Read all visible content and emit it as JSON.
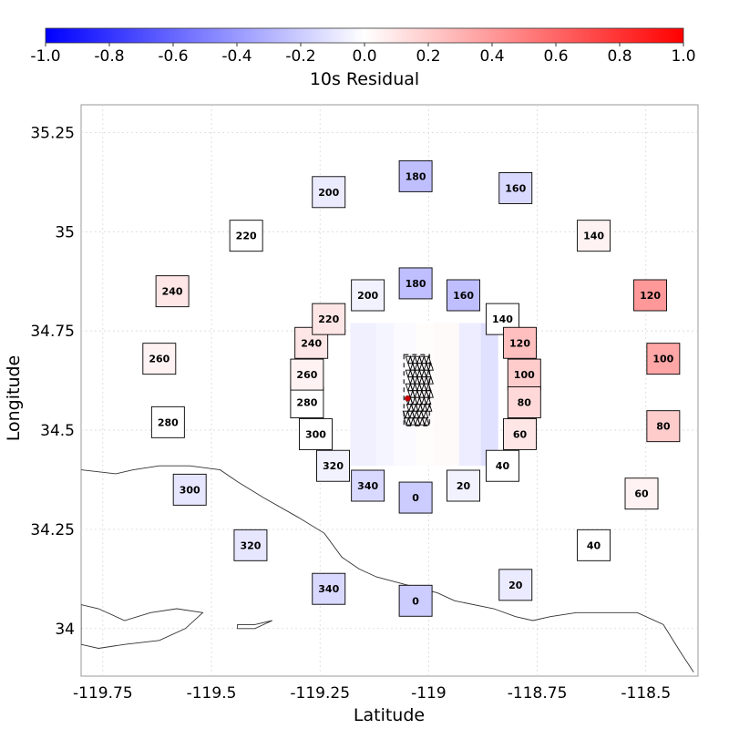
{
  "chart_data": {
    "type": "heatmap",
    "title": "",
    "xlabel": "Latitude",
    "ylabel": "Longitude",
    "xlim": [
      -119.8,
      -118.38
    ],
    "ylim": [
      33.88,
      35.32
    ],
    "xticks": [
      -119.75,
      -119.5,
      -119.25,
      -119,
      -118.75,
      -118.5
    ],
    "xtick_labels": [
      "-119.75",
      "-119.5",
      "-119.25",
      "-119",
      "-118.75",
      "-118.5"
    ],
    "yticks": [
      34,
      34.25,
      34.5,
      34.75,
      35,
      35.25
    ],
    "ytick_labels": [
      "34",
      "34.25",
      "34.5",
      "34.75",
      "35",
      "35.25"
    ],
    "grid": true,
    "colorbar": {
      "label": "10s Residual",
      "placement": "top",
      "min": -1.0,
      "max": 1.0,
      "colors": [
        "#0000ff",
        "#ffffff",
        "#ff0000"
      ],
      "ticks": [
        -1.0,
        -0.8,
        -0.6,
        -0.4,
        -0.2,
        0.0,
        0.2,
        0.4,
        0.6,
        0.8,
        1.0
      ],
      "tick_labels": [
        "-1.0",
        "-0.8",
        "-0.6",
        "-0.4",
        "-0.2",
        "0.0",
        "0.2",
        "0.4",
        "0.6",
        "0.8",
        "1.0"
      ]
    },
    "stations": [
      {
        "label": "180",
        "x": -119.03,
        "y": 35.14,
        "value": -0.25
      },
      {
        "label": "160",
        "x": -118.8,
        "y": 35.11,
        "value": -0.15
      },
      {
        "label": "140",
        "x": -118.62,
        "y": 34.99,
        "value": 0.05
      },
      {
        "label": "120",
        "x": -118.49,
        "y": 34.84,
        "value": 0.4
      },
      {
        "label": "100",
        "x": -118.46,
        "y": 34.68,
        "value": 0.35
      },
      {
        "label": "80",
        "x": -118.46,
        "y": 34.51,
        "value": 0.2
      },
      {
        "label": "60",
        "x": -118.51,
        "y": 34.34,
        "value": 0.05
      },
      {
        "label": "40",
        "x": -118.62,
        "y": 34.21,
        "value": 0.0
      },
      {
        "label": "20",
        "x": -118.8,
        "y": 34.11,
        "value": -0.08
      },
      {
        "label": "0",
        "x": -119.03,
        "y": 34.07,
        "value": -0.2
      },
      {
        "label": "340",
        "x": -119.23,
        "y": 34.1,
        "value": -0.15
      },
      {
        "label": "320",
        "x": -119.41,
        "y": 34.21,
        "value": -0.1
      },
      {
        "label": "300",
        "x": -119.55,
        "y": 34.35,
        "value": -0.1
      },
      {
        "label": "280",
        "x": -119.6,
        "y": 34.52,
        "value": 0.0
      },
      {
        "label": "260",
        "x": -119.62,
        "y": 34.68,
        "value": 0.05
      },
      {
        "label": "240",
        "x": -119.59,
        "y": 34.85,
        "value": 0.1
      },
      {
        "label": "220",
        "x": -119.42,
        "y": 34.99,
        "value": 0.0
      },
      {
        "label": "200",
        "x": -119.23,
        "y": 35.1,
        "value": -0.08
      },
      {
        "label": "180",
        "x": -119.03,
        "y": 34.87,
        "value": -0.25
      },
      {
        "label": "160",
        "x": -118.92,
        "y": 34.84,
        "value": -0.25
      },
      {
        "label": "140",
        "x": -118.83,
        "y": 34.78,
        "value": 0.0
      },
      {
        "label": "120",
        "x": -118.79,
        "y": 34.72,
        "value": 0.25
      },
      {
        "label": "100",
        "x": -118.78,
        "y": 34.64,
        "value": 0.2
      },
      {
        "label": "80",
        "x": -118.78,
        "y": 34.57,
        "value": 0.15
      },
      {
        "label": "60",
        "x": -118.79,
        "y": 34.49,
        "value": 0.1
      },
      {
        "label": "40",
        "x": -118.83,
        "y": 34.41,
        "value": 0.0
      },
      {
        "label": "20",
        "x": -118.92,
        "y": 34.36,
        "value": -0.05
      },
      {
        "label": "0",
        "x": -119.03,
        "y": 34.33,
        "value": -0.2
      },
      {
        "label": "340",
        "x": -119.14,
        "y": 34.36,
        "value": -0.15
      },
      {
        "label": "320",
        "x": -119.22,
        "y": 34.41,
        "value": -0.05
      },
      {
        "label": "300",
        "x": -119.26,
        "y": 34.49,
        "value": 0.0
      },
      {
        "label": "280",
        "x": -119.28,
        "y": 34.57,
        "value": 0.0
      },
      {
        "label": "260",
        "x": -119.28,
        "y": 34.64,
        "value": 0.05
      },
      {
        "label": "240",
        "x": -119.27,
        "y": 34.72,
        "value": 0.1
      },
      {
        "label": "220",
        "x": -119.23,
        "y": 34.78,
        "value": 0.1
      },
      {
        "label": "200",
        "x": -119.14,
        "y": 34.84,
        "value": -0.05
      }
    ],
    "grid_cells": [
      {
        "x0": -119.18,
        "x1": -119.12,
        "y0": 34.41,
        "y1": 34.77,
        "value": -0.06
      },
      {
        "x0": -119.12,
        "x1": -119.08,
        "y0": 34.41,
        "y1": 34.77,
        "value": -0.04
      },
      {
        "x0": -119.08,
        "x1": -119.03,
        "y0": 34.41,
        "y1": 34.77,
        "value": -0.02
      },
      {
        "x0": -119.03,
        "x1": -118.99,
        "y0": 34.41,
        "y1": 34.77,
        "value": 0.01
      },
      {
        "x0": -118.99,
        "x1": -118.93,
        "y0": 34.41,
        "y1": 34.77,
        "value": 0.02
      },
      {
        "x0": -118.93,
        "x1": -118.88,
        "y0": 34.41,
        "y1": 34.77,
        "value": -0.07
      },
      {
        "x0": -118.88,
        "x1": -118.84,
        "y0": 34.41,
        "y1": 34.77,
        "value": -0.12
      }
    ],
    "epicenter": {
      "x": -119.04,
      "y": 34.58
    },
    "coastline": [
      [
        -119.8,
        34.4
      ],
      [
        -119.72,
        34.39
      ],
      [
        -119.68,
        34.4
      ],
      [
        -119.62,
        34.41
      ],
      [
        -119.55,
        34.41
      ],
      [
        -119.48,
        34.4
      ],
      [
        -119.44,
        34.37
      ],
      [
        -119.38,
        34.33
      ],
      [
        -119.3,
        34.28
      ],
      [
        -119.24,
        34.24
      ],
      [
        -119.2,
        34.18
      ],
      [
        -119.16,
        34.15
      ],
      [
        -119.12,
        34.13
      ],
      [
        -119.05,
        34.11
      ],
      [
        -118.98,
        34.09
      ],
      [
        -118.94,
        34.07
      ],
      [
        -118.85,
        34.05
      ],
      [
        -118.8,
        34.03
      ],
      [
        -118.76,
        34.02
      ],
      [
        -118.72,
        34.03
      ],
      [
        -118.66,
        34.04
      ],
      [
        -118.58,
        34.04
      ],
      [
        -118.52,
        34.04
      ],
      [
        -118.46,
        34.01
      ],
      [
        -118.42,
        33.94
      ],
      [
        -118.39,
        33.89
      ]
    ],
    "island_west": [
      [
        -119.8,
        34.06
      ],
      [
        -119.76,
        34.05
      ],
      [
        -119.7,
        34.02
      ],
      [
        -119.64,
        34.04
      ],
      [
        -119.58,
        34.05
      ],
      [
        -119.52,
        34.04
      ],
      [
        -119.56,
        34.0
      ],
      [
        -119.62,
        33.97
      ],
      [
        -119.7,
        33.96
      ],
      [
        -119.76,
        33.95
      ],
      [
        -119.8,
        33.96
      ]
    ],
    "island_east": [
      [
        -119.44,
        34.01
      ],
      [
        -119.4,
        34.01
      ],
      [
        -119.36,
        34.02
      ],
      [
        -119.4,
        34.0
      ],
      [
        -119.44,
        34.0
      ]
    ]
  }
}
